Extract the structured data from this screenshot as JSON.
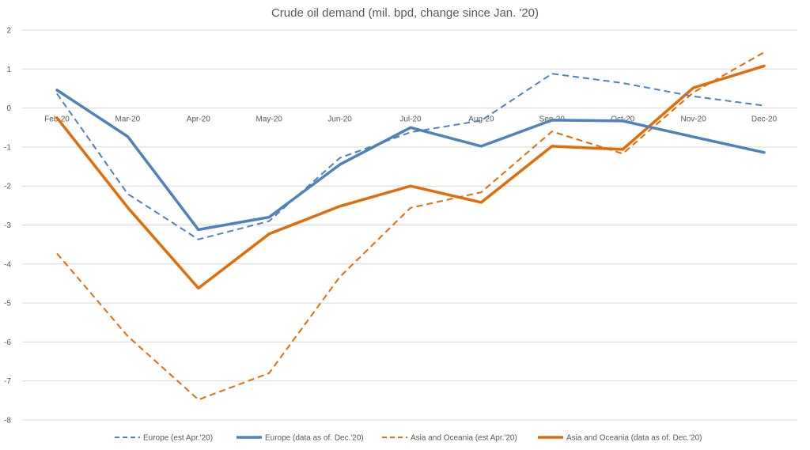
{
  "chart_data": {
    "type": "line",
    "title": "Crude oil demand (mil. bpd, change since Jan. '20)",
    "xlabel": "",
    "ylabel": "",
    "ylim": [
      -8,
      2
    ],
    "yticks": [
      2,
      1,
      0,
      -1,
      -2,
      -3,
      -4,
      -5,
      -6,
      -7,
      -8
    ],
    "grid": true,
    "legend_position": "bottom",
    "categories": [
      "Feb-20",
      "Mar-20",
      "Apr-20",
      "May-20",
      "Jun-20",
      "Jul-20",
      "Aug-20",
      "Sep-20",
      "Oct-20",
      "Nov-20",
      "Dec-20"
    ],
    "series": [
      {
        "name": "Europe (est Apr.'20)",
        "color": "#4f81bd",
        "dashed": true,
        "values": [
          0.37,
          -2.2,
          -3.37,
          -2.9,
          -1.28,
          -0.62,
          -0.32,
          0.88,
          0.64,
          0.3,
          0.06
        ]
      },
      {
        "name": "Europe (data as of. Dec.'20)",
        "color": "#4f81bd",
        "dashed": false,
        "values": [
          0.46,
          -0.73,
          -3.12,
          -2.8,
          -1.45,
          -0.5,
          -0.98,
          -0.31,
          -0.33,
          -0.74,
          -1.14
        ]
      },
      {
        "name": "Asia and Oceania  (est Apr.'20)",
        "color": "#e36c09",
        "dashed": true,
        "values": [
          -3.73,
          -5.85,
          -7.48,
          -6.8,
          -4.33,
          -2.56,
          -2.16,
          -0.6,
          -1.17,
          0.4,
          1.43
        ]
      },
      {
        "name": "Asia and Oceania  (data as of. Dec.'20)",
        "color": "#e36c09",
        "dashed": false,
        "values": [
          -0.25,
          -2.55,
          -4.62,
          -3.23,
          -2.52,
          -2.0,
          -2.42,
          -0.98,
          -1.06,
          0.52,
          1.08
        ]
      }
    ]
  }
}
